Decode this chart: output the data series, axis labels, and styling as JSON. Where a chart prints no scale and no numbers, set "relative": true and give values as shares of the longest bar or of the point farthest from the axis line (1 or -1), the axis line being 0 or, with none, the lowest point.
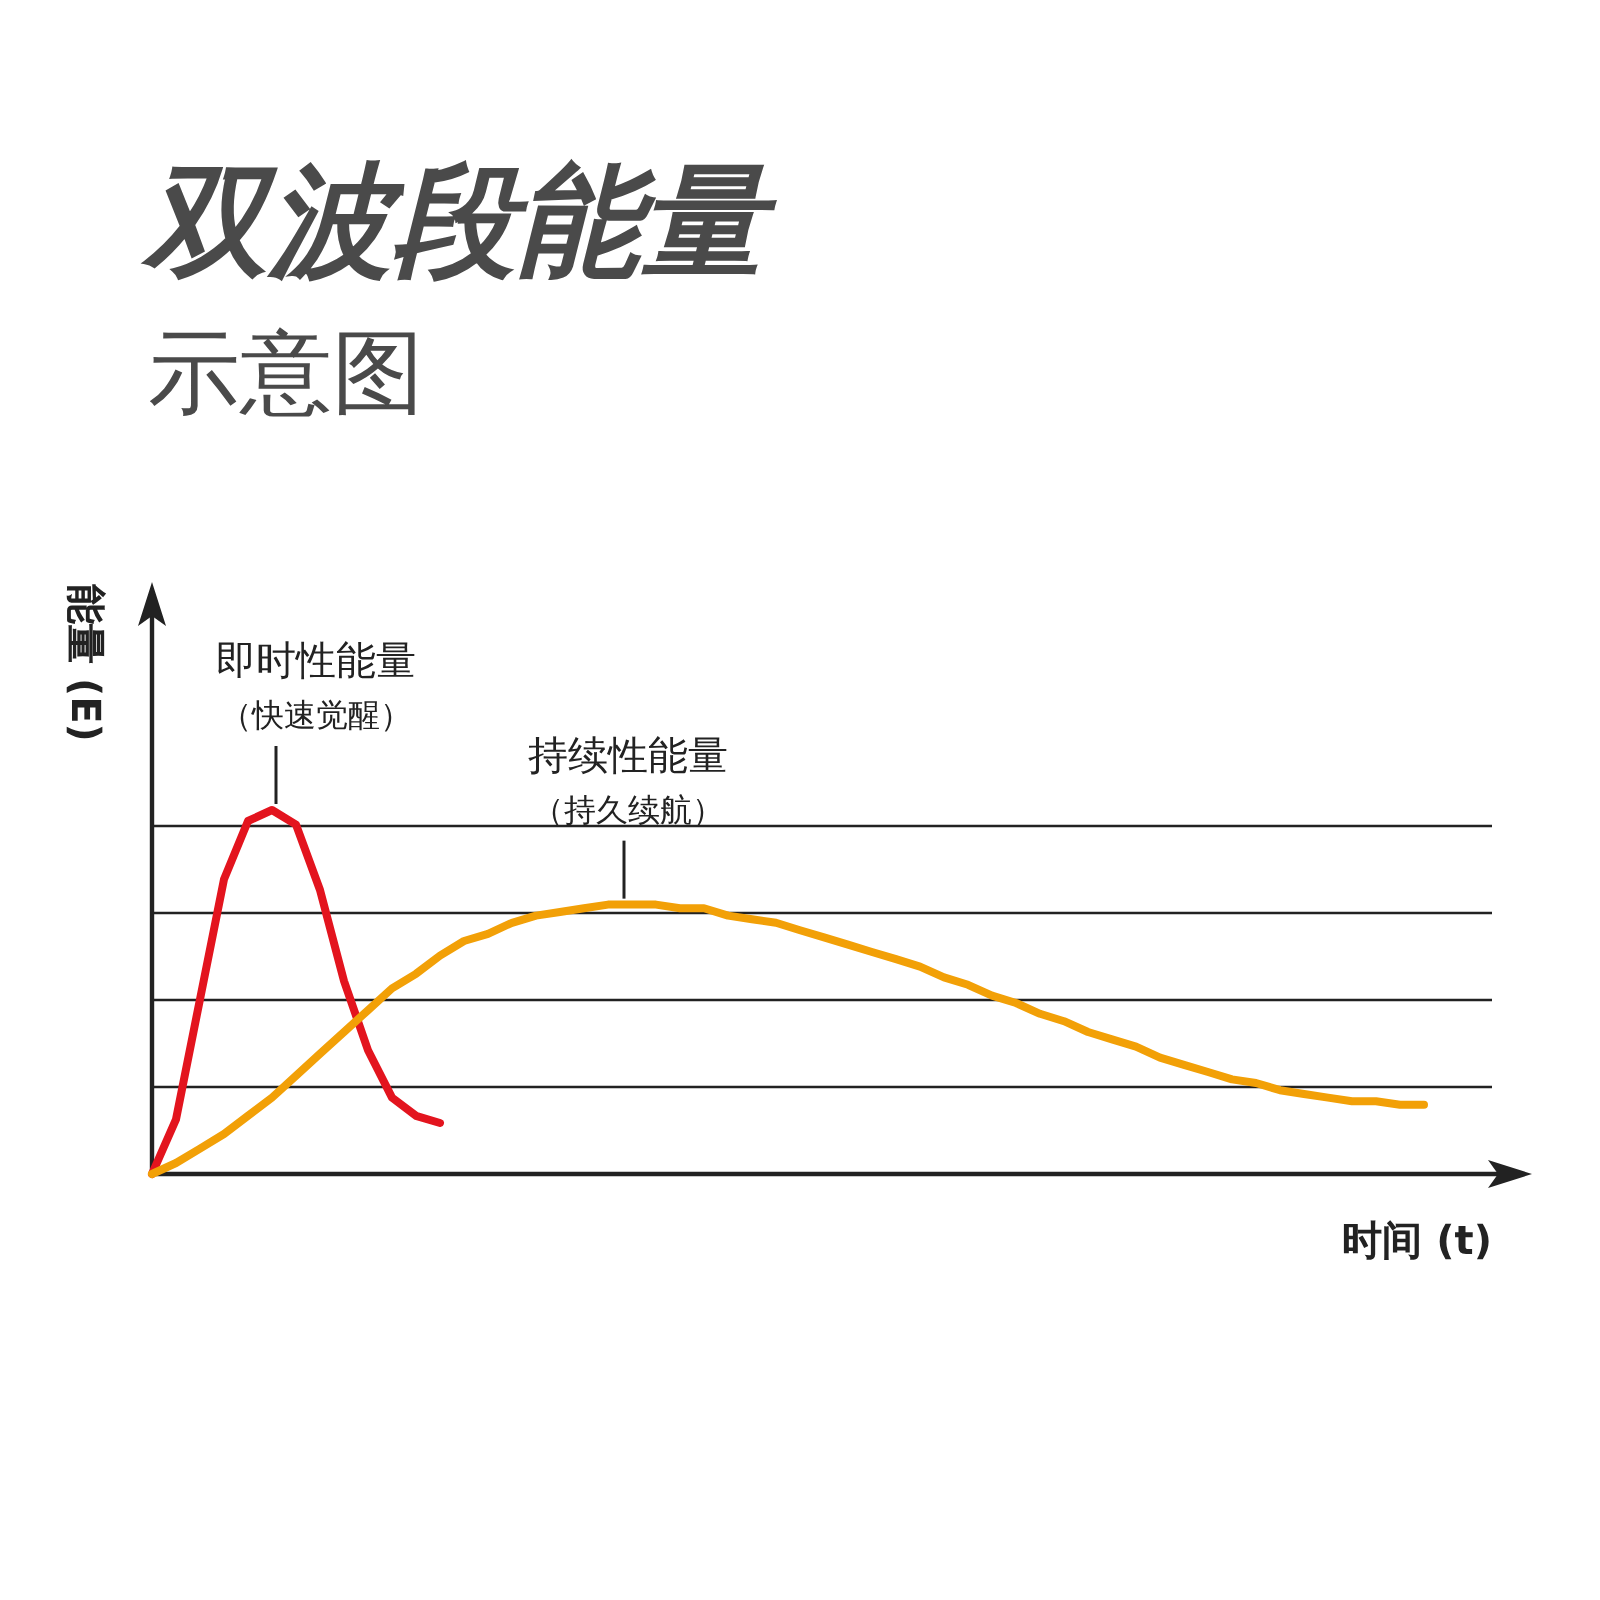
{
  "chart_data": {
    "type": "line",
    "relative": true,
    "title": "双波段能量",
    "subtitle": "示意图",
    "xlabel": "时间 (t)",
    "ylabel": "能量 (E)",
    "categories": [
      null,
      null,
      null,
      null,
      null,
      null,
      null,
      null,
      null,
      null,
      null,
      null,
      null,
      null,
      null,
      null,
      null,
      null,
      null,
      null,
      null,
      null,
      null,
      null,
      null,
      null,
      null,
      null,
      null,
      null,
      null,
      null,
      null,
      null,
      null,
      null,
      null,
      null,
      null,
      null,
      null,
      null,
      null,
      null,
      null,
      null,
      null,
      null,
      null,
      null,
      null,
      null,
      null,
      null,
      null,
      null,
      null,
      null
    ],
    "series": [
      {
        "color": "#e3141e",
        "values": [
          0,
          0.15,
          0.48,
          0.81,
          0.97,
          1.0,
          0.96,
          0.78,
          0.53,
          0.34,
          0.21,
          0.16,
          0.14,
          null,
          null,
          null,
          null,
          null,
          null,
          null,
          null,
          null,
          null,
          null,
          null,
          null,
          null,
          null,
          null,
          null,
          null,
          null,
          null,
          null,
          null,
          null,
          null,
          null,
          null,
          null,
          null,
          null,
          null,
          null,
          null,
          null,
          null,
          null,
          null,
          null,
          null,
          null,
          null,
          null,
          null,
          null,
          null,
          null
        ]
      },
      {
        "color": "#f2a007",
        "values": [
          0,
          0.03,
          0.07,
          0.11,
          0.16,
          0.21,
          0.27,
          0.33,
          0.39,
          0.45,
          0.51,
          0.55,
          0.6,
          0.64,
          0.66,
          0.69,
          0.71,
          0.72,
          0.73,
          0.74,
          0.74,
          0.74,
          0.73,
          0.73,
          0.71,
          0.7,
          0.69,
          0.67,
          0.65,
          0.63,
          0.61,
          0.59,
          0.57,
          0.54,
          0.52,
          0.49,
          0.47,
          0.44,
          0.42,
          0.39,
          0.37,
          0.35,
          0.32,
          0.3,
          0.28,
          0.26,
          0.25,
          0.23,
          0.22,
          0.21,
          0.2,
          0.2,
          0.19,
          0.19,
          null,
          null,
          null,
          null
        ]
      }
    ],
    "annotations": [
      "即时性能量",
      "（快速觉醒）",
      "持续性能量",
      "（持久续航）"
    ],
    "grid": "y",
    "marker": "none",
    "line_style": "solid"
  }
}
